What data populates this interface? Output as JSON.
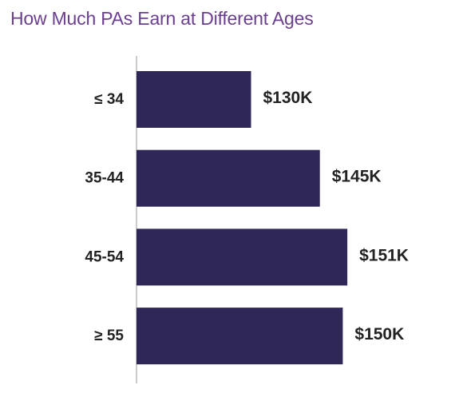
{
  "chart_data": {
    "type": "bar",
    "orientation": "horizontal",
    "title": "How Much PAs Earn at Different Ages",
    "categories": [
      "≤ 34",
      "35-44",
      "45-54",
      "≥ 55"
    ],
    "values": [
      130,
      145,
      151,
      150
    ],
    "value_labels": [
      "$130K",
      "$145K",
      "$151K",
      "$150K"
    ],
    "value_unit": "$K",
    "xlim": [
      105,
      163
    ],
    "grid": false,
    "legend": "none",
    "colors": {
      "bar": "#2f2757",
      "title": "#6b3f8f",
      "axis": "#999999",
      "text": "#222222"
    }
  }
}
